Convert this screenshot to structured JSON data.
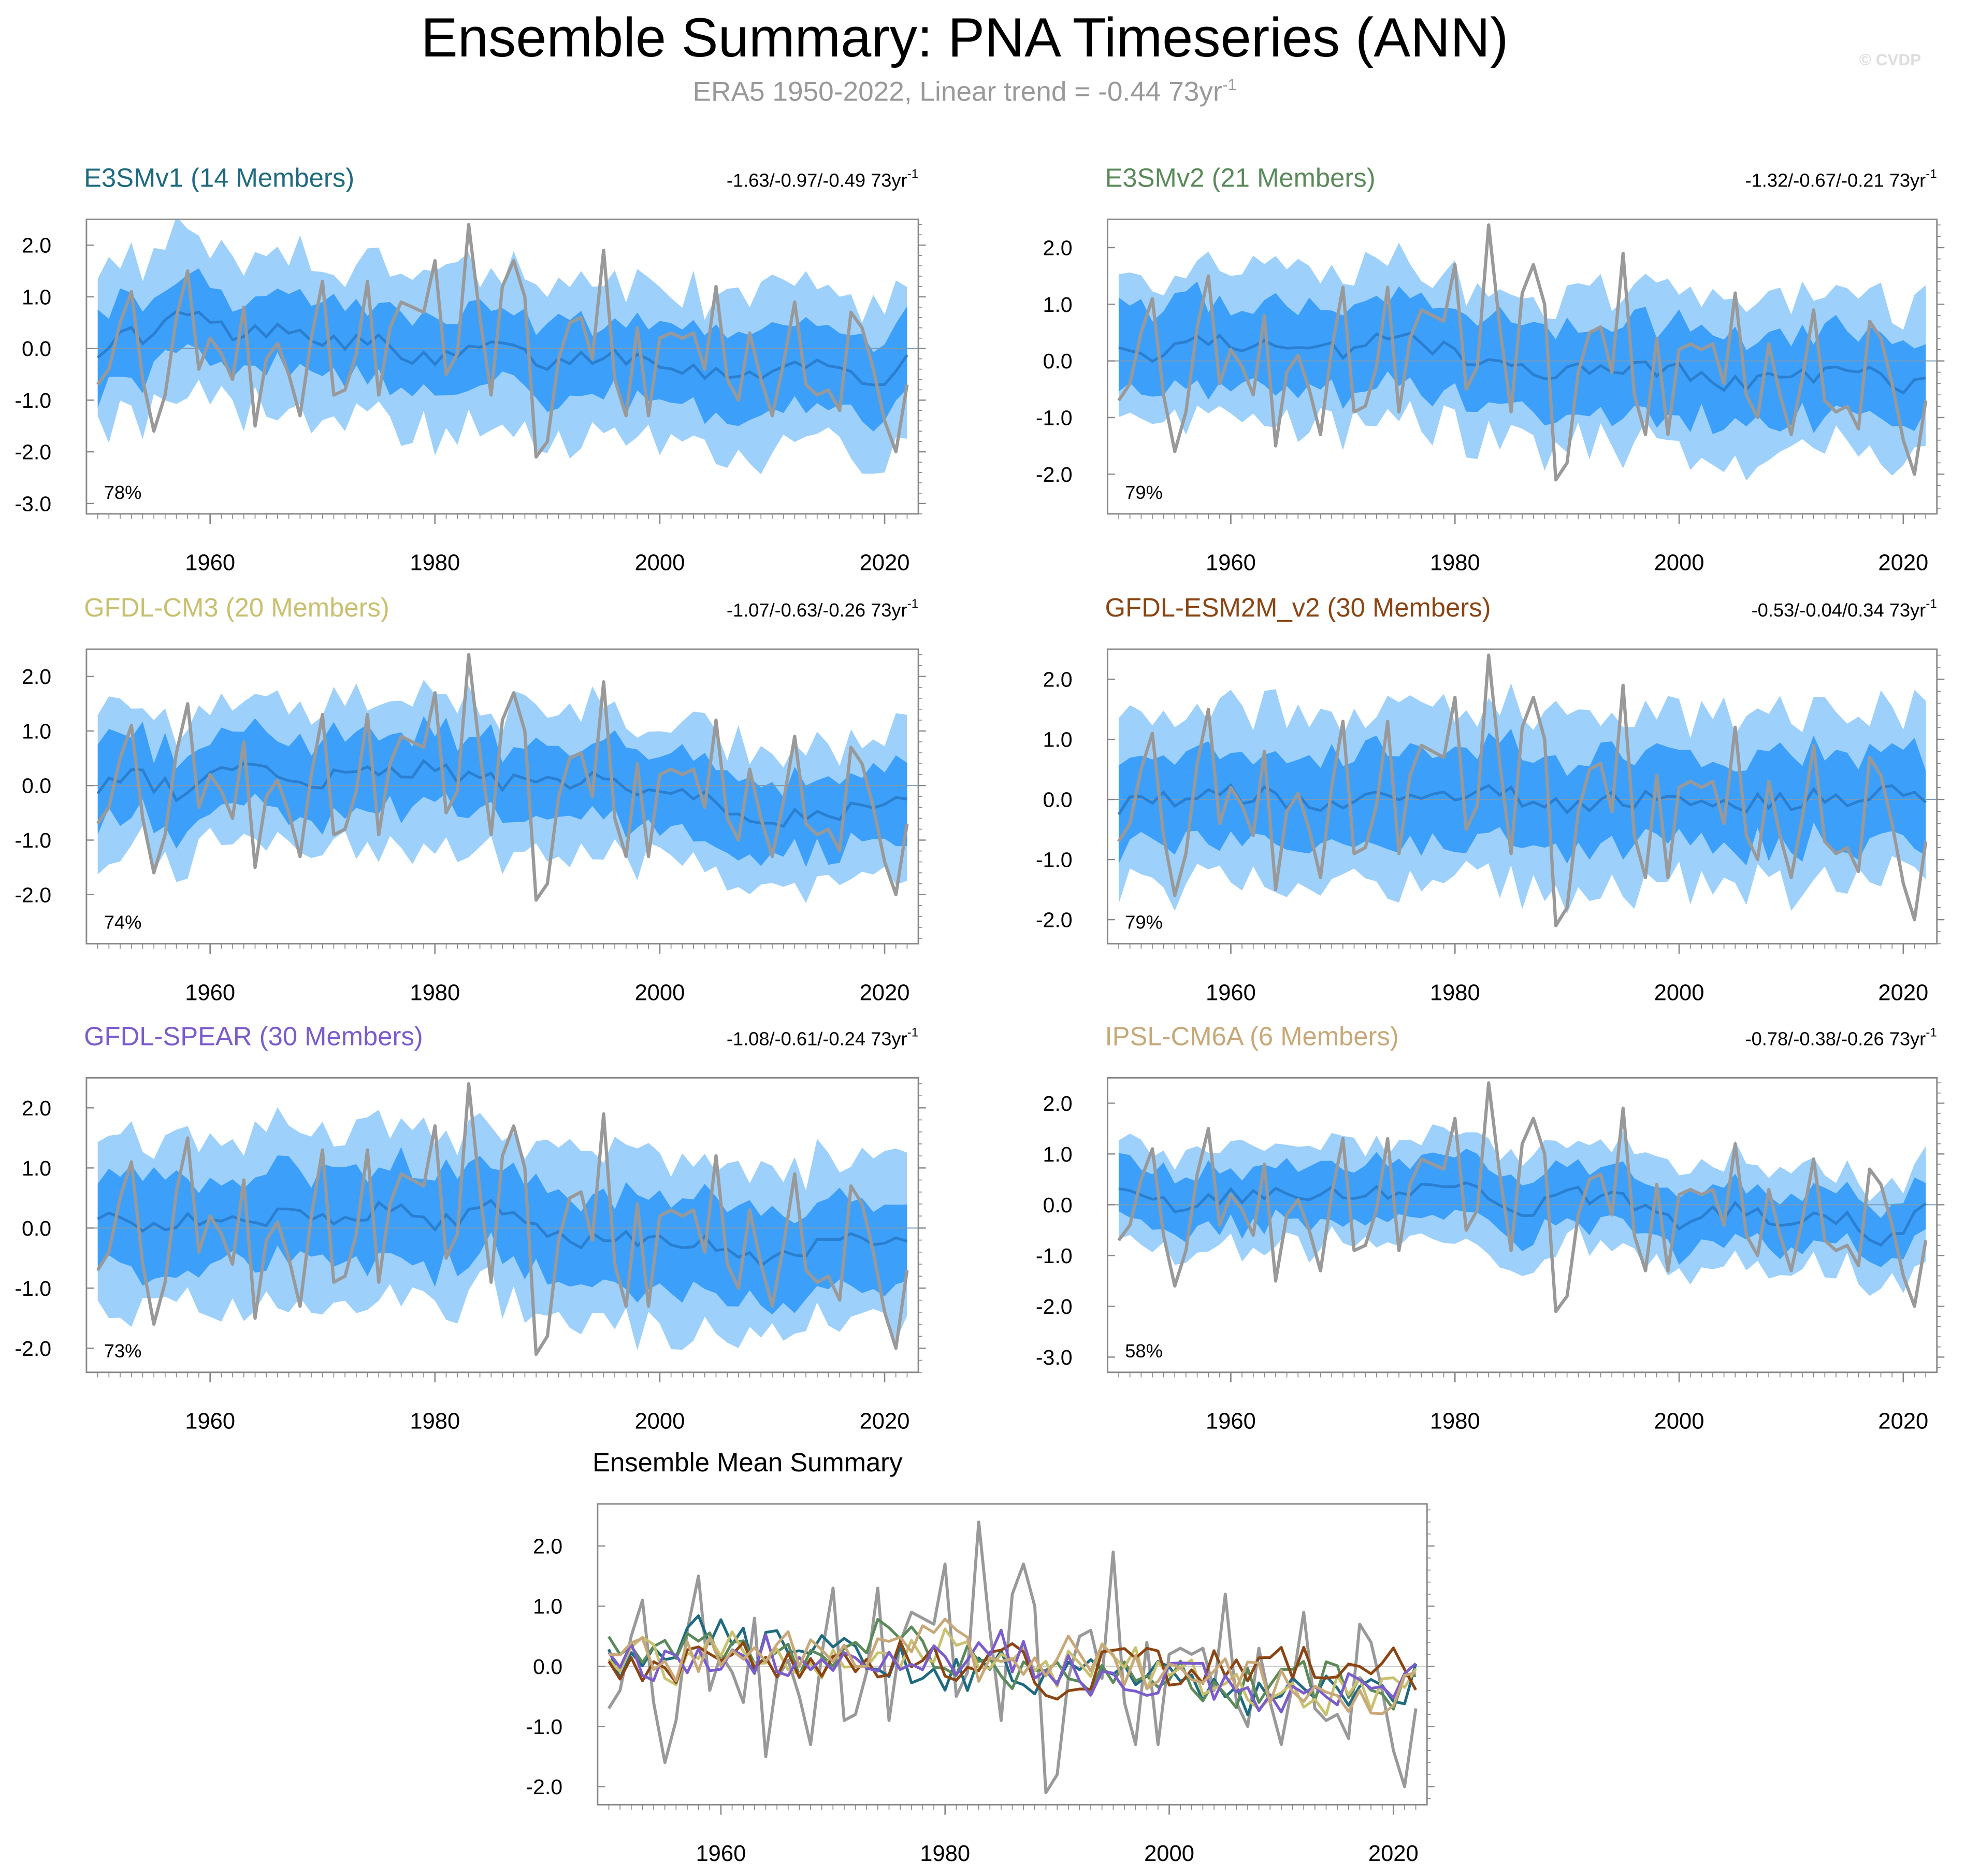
{
  "title": "Ensemble Summary: PNA Timeseries (ANN)",
  "subtitle": {
    "text": "ERA5 1950-2022, Linear trend = -0.44 73yr",
    "superscript": "-1"
  },
  "credit": "© CVDP",
  "colors": {
    "outer_band": "#9dd0fb",
    "inner_band": "#3ca0fb",
    "ensemble_mean": "#2a7fd0",
    "observations": "#999999",
    "axis": "#888888"
  },
  "chart_data": [
    {
      "type": "area",
      "title": "E3SMv1 (14 Members)",
      "title_color": "#1f6a80",
      "trend_label": "-1.63/-0.97/-0.49 73yr",
      "trend_sup": "-1",
      "percent_label": "78%",
      "ylim": [
        -3.2,
        2.5
      ],
      "yticks": [
        "2.0",
        "1.0",
        "0.0",
        "-1.0",
        "-2.0",
        "-3.0"
      ],
      "ytick_values": [
        2,
        1,
        0,
        -1,
        -2,
        -3
      ],
      "xlim": [
        1949,
        1950,
        2023
      ],
      "xticks": [
        "1960",
        "1980",
        "2000",
        "2020"
      ],
      "series": [
        {
          "name": "ensemble mean",
          "anchors": [
            [
              1950,
              0.0
            ],
            [
              1953,
              0.3
            ],
            [
              1955,
              0.2
            ],
            [
              1957,
              0.7
            ],
            [
              1960,
              0.5
            ],
            [
              1963,
              0.2
            ],
            [
              1966,
              0.5
            ],
            [
              1970,
              0.2
            ],
            [
              1975,
              0.1
            ],
            [
              1980,
              -0.3
            ],
            [
              1985,
              0.1
            ],
            [
              1990,
              -0.3
            ],
            [
              1995,
              -0.1
            ],
            [
              2000,
              -0.2
            ],
            [
              2005,
              -0.5
            ],
            [
              2010,
              -0.4
            ],
            [
              2015,
              -0.3
            ],
            [
              2020,
              -0.7
            ],
            [
              2022,
              -0.2
            ]
          ],
          "inner_half": 0.75,
          "outer_half": 1.5
        }
      ]
    },
    {
      "type": "area",
      "title": "E3SMv2 (21 Members)",
      "title_color": "#5a8a5a",
      "trend_label": "-1.32/-0.67/-0.21 73yr",
      "trend_sup": "-1",
      "percent_label": "79%",
      "ylim": [
        -2.7,
        2.5
      ],
      "yticks": [
        "2.0",
        "1.0",
        "0.0",
        "-1.0",
        "-2.0"
      ],
      "ytick_values": [
        2,
        1,
        0,
        -1,
        -2
      ],
      "xlim": [
        1949,
        1950,
        2023
      ],
      "xticks": [
        "1960",
        "1980",
        "2000",
        "2020"
      ],
      "series": [
        {
          "name": "ensemble mean",
          "anchors": [
            [
              1950,
              0.2
            ],
            [
              1953,
              0.1
            ],
            [
              1957,
              0.3
            ],
            [
              1960,
              0.4
            ],
            [
              1965,
              0.1
            ],
            [
              1970,
              0.2
            ],
            [
              1975,
              0.5
            ],
            [
              1980,
              0.1
            ],
            [
              1985,
              -0.1
            ],
            [
              1990,
              -0.2
            ],
            [
              1995,
              -0.1
            ],
            [
              2000,
              -0.2
            ],
            [
              2005,
              -0.4
            ],
            [
              2010,
              -0.3
            ],
            [
              2015,
              -0.2
            ],
            [
              2020,
              -0.4
            ],
            [
              2022,
              -0.3
            ]
          ],
          "inner_half": 0.75,
          "outer_half": 1.35
        }
      ]
    },
    {
      "type": "area",
      "title": "GFDL-CM3 (20 Members)",
      "title_color": "#c9c070",
      "trend_label": "-1.07/-0.63/-0.26 73yr",
      "trend_sup": "-1",
      "percent_label": "74%",
      "ylim": [
        -2.9,
        2.5
      ],
      "yticks": [
        "2.0",
        "1.0",
        "0.0",
        "-1.0",
        "-2.0"
      ],
      "ytick_values": [
        2,
        1,
        0,
        -1,
        -2
      ],
      "xlim": [
        1949,
        1950,
        2023
      ],
      "xticks": [
        "1960",
        "1980",
        "2000",
        "2020"
      ],
      "series": [
        {
          "name": "ensemble mean",
          "anchors": [
            [
              1950,
              0.0
            ],
            [
              1953,
              0.2
            ],
            [
              1957,
              -0.1
            ],
            [
              1960,
              0.3
            ],
            [
              1965,
              0.2
            ],
            [
              1970,
              0.1
            ],
            [
              1975,
              0.3
            ],
            [
              1980,
              0.3
            ],
            [
              1985,
              0.1
            ],
            [
              1990,
              0.0
            ],
            [
              1995,
              0.1
            ],
            [
              2000,
              -0.2
            ],
            [
              2005,
              -0.3
            ],
            [
              2010,
              -0.6
            ],
            [
              2015,
              -0.5
            ],
            [
              2020,
              -0.4
            ],
            [
              2022,
              -0.3
            ]
          ],
          "inner_half": 0.7,
          "outer_half": 1.3
        }
      ]
    },
    {
      "type": "area",
      "title": "GFDL-ESM2M_v2 (30 Members)",
      "title_color": "#8b4513",
      "trend_label": "-0.53/-0.04/0.34 73yr",
      "trend_sup": "-1",
      "percent_label": "79%",
      "ylim": [
        -2.4,
        2.5
      ],
      "yticks": [
        "2.0",
        "1.0",
        "0.0",
        "-1.0",
        "-2.0"
      ],
      "ytick_values": [
        2,
        1,
        0,
        -1,
        -2
      ],
      "xlim": [
        1949,
        1950,
        2023
      ],
      "xticks": [
        "1960",
        "1980",
        "2000",
        "2020"
      ],
      "series": [
        {
          "name": "ensemble mean",
          "anchors": [
            [
              1950,
              -0.1
            ],
            [
              1955,
              0.0
            ],
            [
              1960,
              0.1
            ],
            [
              1965,
              0.0
            ],
            [
              1970,
              -0.1
            ],
            [
              1975,
              0.1
            ],
            [
              1980,
              0.0
            ],
            [
              1985,
              0.1
            ],
            [
              1990,
              -0.2
            ],
            [
              1995,
              0.0
            ],
            [
              2000,
              0.0
            ],
            [
              2005,
              -0.1
            ],
            [
              2010,
              0.0
            ],
            [
              2015,
              0.0
            ],
            [
              2020,
              0.1
            ],
            [
              2022,
              -0.2
            ]
          ],
          "inner_half": 0.75,
          "outer_half": 1.4
        }
      ]
    },
    {
      "type": "area",
      "title": "GFDL-SPEAR (30 Members)",
      "title_color": "#7b5ccc",
      "trend_label": "-1.08/-0.61/-0.24 73yr",
      "trend_sup": "-1",
      "percent_label": "73%",
      "ylim": [
        -2.4,
        2.5
      ],
      "yticks": [
        "2.0",
        "1.0",
        "0.0",
        "-1.0",
        "-2.0"
      ],
      "ytick_values": [
        2,
        1,
        0,
        -1,
        -2
      ],
      "xlim": [
        1949,
        1950,
        2023
      ],
      "xticks": [
        "1960",
        "1980",
        "2000",
        "2020"
      ],
      "series": [
        {
          "name": "ensemble mean",
          "anchors": [
            [
              1950,
              0.1
            ],
            [
              1955,
              0.1
            ],
            [
              1960,
              0.2
            ],
            [
              1965,
              0.2
            ],
            [
              1970,
              0.1
            ],
            [
              1975,
              0.3
            ],
            [
              1980,
              0.1
            ],
            [
              1985,
              0.3
            ],
            [
              1990,
              -0.1
            ],
            [
              1995,
              -0.2
            ],
            [
              2000,
              -0.2
            ],
            [
              2005,
              -0.3
            ],
            [
              2010,
              -0.5
            ],
            [
              2015,
              -0.3
            ],
            [
              2020,
              -0.2
            ],
            [
              2022,
              -0.3
            ]
          ],
          "inner_half": 0.75,
          "outer_half": 1.4
        }
      ]
    },
    {
      "type": "area",
      "title": "IPSL-CM6A (6 Members)",
      "title_color": "#c8a878",
      "trend_label": "-0.78/-0.38/-0.26 73yr",
      "trend_sup": "-1",
      "percent_label": "58%",
      "ylim": [
        -3.3,
        2.5
      ],
      "yticks": [
        "2.0",
        "1.0",
        "0.0",
        "-1.0",
        "-2.0",
        "-3.0"
      ],
      "ytick_values": [
        2,
        1,
        0,
        -1,
        -2,
        -3
      ],
      "xlim": [
        1949,
        1950,
        2023
      ],
      "xticks": [
        "1960",
        "1980",
        "2000",
        "2020"
      ],
      "series": [
        {
          "name": "ensemble mean",
          "anchors": [
            [
              1950,
              0.3
            ],
            [
              1955,
              0.0
            ],
            [
              1960,
              0.2
            ],
            [
              1965,
              0.3
            ],
            [
              1970,
              0.2
            ],
            [
              1975,
              0.3
            ],
            [
              1980,
              0.5
            ],
            [
              1985,
              -0.2
            ],
            [
              1990,
              0.2
            ],
            [
              1995,
              0.1
            ],
            [
              2000,
              -0.3
            ],
            [
              2005,
              -0.1
            ],
            [
              2010,
              -0.3
            ],
            [
              2015,
              -0.2
            ],
            [
              2018,
              -0.8
            ],
            [
              2022,
              0.0
            ]
          ],
          "inner_half": 0.55,
          "outer_half": 1.0
        }
      ]
    },
    {
      "type": "line",
      "title": "Ensemble Mean Summary",
      "title_color": "#000000",
      "ylim": [
        -2.3,
        2.7
      ],
      "yticks": [
        "2.0",
        "1.0",
        "0.0",
        "-1.0",
        "-2.0"
      ],
      "ytick_values": [
        2,
        1,
        0,
        -1,
        -2
      ],
      "xlim": [
        1949,
        1950,
        2023
      ],
      "xticks": [
        "1960",
        "1980",
        "2000",
        "2020"
      ],
      "series": [
        {
          "name": "E3SMv1",
          "color": "#1f6a80"
        },
        {
          "name": "E3SMv2",
          "color": "#5a8a5a"
        },
        {
          "name": "GFDL-CM3",
          "color": "#c9c070"
        },
        {
          "name": "GFDL-ESM2M_v2",
          "color": "#8b4513"
        },
        {
          "name": "GFDL-SPEAR",
          "color": "#7b5ccc"
        },
        {
          "name": "IPSL-CM6A",
          "color": "#c8a878"
        }
      ]
    }
  ],
  "observations": {
    "name": "ERA5",
    "years": [
      1950,
      2022
    ],
    "values": [
      -0.7,
      -0.4,
      0.5,
      1.1,
      -0.6,
      -1.6,
      -0.9,
      0.6,
      1.5,
      -0.4,
      0.2,
      -0.1,
      -0.6,
      0.8,
      -1.5,
      -0.2,
      0.1,
      -0.5,
      -1.3,
      0.2,
      1.3,
      -0.9,
      -0.8,
      -0.1,
      1.3,
      -0.9,
      0.4,
      0.9,
      0.8,
      0.7,
      1.7,
      -0.5,
      -0.1,
      2.4,
      0.6,
      -0.9,
      1.2,
      1.7,
      1.0,
      -2.1,
      -1.8,
      -0.2,
      0.5,
      0.6,
      -0.2,
      1.9,
      -0.6,
      -1.3,
      0.4,
      -1.3,
      0.2,
      0.3,
      0.2,
      0.3,
      -0.4,
      1.2,
      -0.6,
      -1.0,
      0.3,
      -0.6,
      -1.3,
      -0.3,
      0.9,
      -0.7,
      -0.9,
      -0.8,
      -1.2,
      0.7,
      0.4,
      -0.4,
      -1.4,
      -2.0,
      -0.7
    ]
  }
}
